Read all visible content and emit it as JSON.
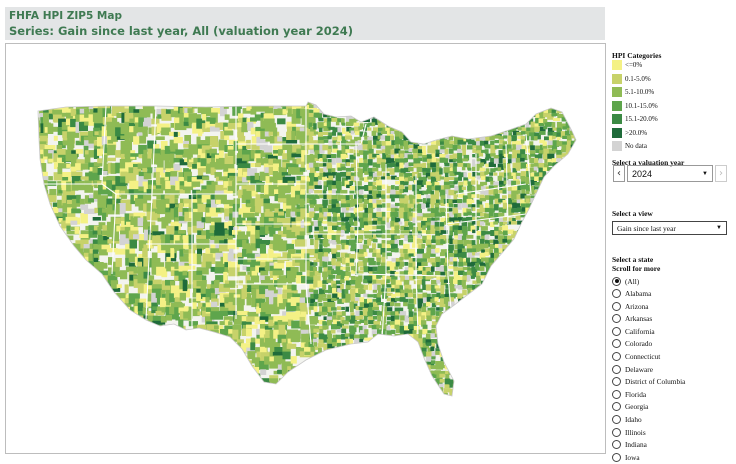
{
  "header": {
    "title": "FHFA HPI ZIP5 Map",
    "subtitle": "Series: Gain since last year,  All (valuation year 2024)"
  },
  "legend": {
    "title": "HPI Categories",
    "items": [
      {
        "label": "<=0%",
        "color": "#f4f185"
      },
      {
        "label": "0.1-5.0%",
        "color": "#c7d26a"
      },
      {
        "label": "5.1-10.0%",
        "color": "#8fbb55"
      },
      {
        "label": "10.1-15.0%",
        "color": "#5ea54c"
      },
      {
        "label": "15.1-20.0%",
        "color": "#3b8a44"
      },
      {
        "label": ">20.0%",
        "color": "#1f6b3a"
      },
      {
        "label": "No data",
        "color": "#d3d3d3"
      }
    ]
  },
  "year_control": {
    "label": "Select a valuation year",
    "value": "2024",
    "prev_icon": "chevron-left-icon",
    "next_icon": "chevron-right-icon"
  },
  "view_control": {
    "label": "Select a view",
    "value": "Gain since last year"
  },
  "state_control": {
    "label_line1": "Select a state",
    "label_line2": "Scroll for more",
    "selected": "(All)",
    "options": [
      "(All)",
      "Alabama",
      "Arizona",
      "Arkansas",
      "California",
      "Colorado",
      "Connecticut",
      "Delaware",
      "District of Columbia",
      "Florida",
      "Georgia",
      "Idaho",
      "Illinois",
      "Indiana",
      "Iowa"
    ]
  },
  "colors": {
    "title_green": "#3f7a52",
    "header_bg": "#e3e5e6",
    "state_border": "#ffffff"
  }
}
